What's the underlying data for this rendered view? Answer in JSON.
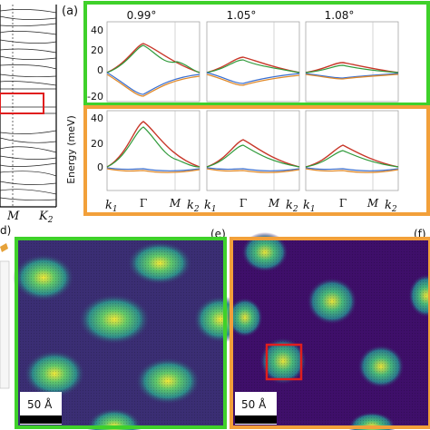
{
  "panel_labels": {
    "a": "(a)",
    "d": "d)",
    "e": "(e)",
    "f": "(f)"
  },
  "ylabel": "Energy (meV)",
  "angles": [
    "0.99°",
    "1.05°",
    "1.08°"
  ],
  "yticks": [
    "40",
    "20",
    "0",
    "-20"
  ],
  "xticks": {
    "k1": "k",
    "k1_sub": "1",
    "gamma": "Γ",
    "m": "M",
    "k2": "k",
    "k2_sub": "2"
  },
  "left_panel": {
    "m_label": "M",
    "k2_label": "K",
    "k2_sub": "2"
  },
  "scale_bar": "50 Å",
  "colors": {
    "green_frame": "#3fd12a",
    "orange_frame": "#f2a03a",
    "highlight": "#e01e1e",
    "red_band": "#c8382a",
    "green_band": "#2f9a3a",
    "blue_band": "#3a6fd0",
    "orange_band": "#e08a2a"
  },
  "chart_data": [
    {
      "type": "line",
      "title": "0.99°",
      "row": "top",
      "xlabel": "",
      "ylabel": "Energy (meV)",
      "ylim": [
        -20,
        40
      ],
      "series": [
        {
          "band": "upper",
          "peak": 20
        },
        {
          "band": "lower",
          "min": -15
        }
      ]
    },
    {
      "type": "line",
      "title": "1.05°",
      "row": "top",
      "ylim": [
        -20,
        40
      ],
      "series": [
        {
          "band": "upper",
          "peak": 10
        },
        {
          "band": "lower",
          "min": -8
        }
      ]
    },
    {
      "type": "line",
      "title": "1.08°",
      "row": "top",
      "ylim": [
        -20,
        40
      ],
      "series": [
        {
          "band": "upper",
          "peak": 6
        },
        {
          "band": "lower",
          "min": -3
        }
      ]
    },
    {
      "type": "line",
      "row": "bottom",
      "ylim": [
        -20,
        40
      ],
      "series": [
        {
          "band": "upper",
          "peak": 36
        },
        {
          "band": "lower",
          "min": -2
        }
      ]
    },
    {
      "type": "line",
      "row": "bottom",
      "ylim": [
        -20,
        40
      ],
      "series": [
        {
          "band": "upper",
          "peak": 21
        },
        {
          "band": "lower",
          "min": -2
        }
      ]
    },
    {
      "type": "line",
      "row": "bottom",
      "ylim": [
        -20,
        40
      ],
      "series": [
        {
          "band": "upper",
          "peak": 16
        },
        {
          "band": "lower",
          "min": -2
        }
      ]
    }
  ]
}
